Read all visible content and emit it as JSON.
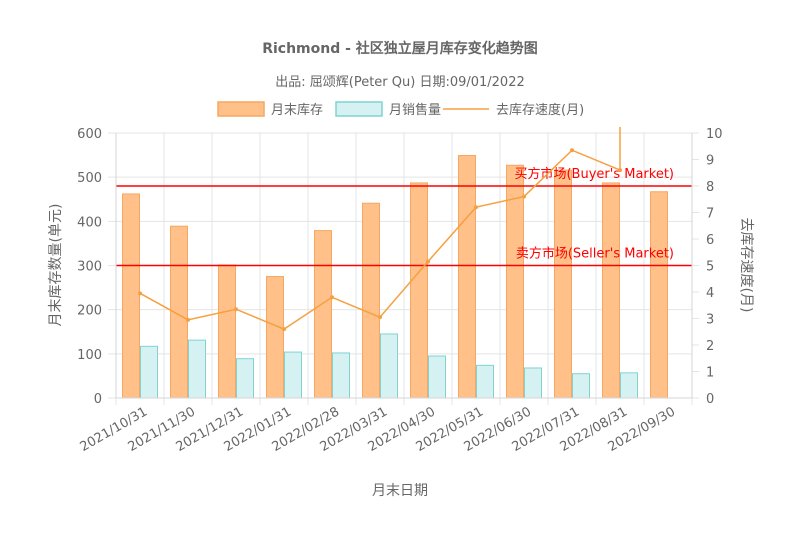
{
  "chart_data": {
    "type": "bar",
    "title": "Richmond - 社区独立屋月库存变化趋势图",
    "subtitle": "出品: 屈颂辉(Peter Qu) 日期:09/01/2022",
    "categories": [
      "2021/10/31",
      "2021/11/30",
      "2021/12/31",
      "2022/01/31",
      "2022/02/28",
      "2022/03/31",
      "2022/04/30",
      "2022/05/31",
      "2022/06/30",
      "2022/07/31",
      "2022/08/31",
      "2022/09/30"
    ],
    "series": [
      {
        "name": "月末库存",
        "type": "bar",
        "axis": "left",
        "color": "#ffc08a",
        "border": "#f5a860",
        "values": [
          462,
          389,
          301,
          275,
          379,
          441,
          487,
          549,
          527,
          516,
          487,
          467
        ]
      },
      {
        "name": "月销售量",
        "type": "bar",
        "axis": "left",
        "color": "#d6f1f1",
        "border": "#7fd3d3",
        "values": [
          117,
          131,
          89,
          104,
          102,
          145,
          95,
          74,
          68,
          55,
          57,
          0
        ]
      },
      {
        "name": "去库存速度(月)",
        "type": "line",
        "axis": "right",
        "color": "#f5a040",
        "values": [
          3.95,
          2.95,
          3.35,
          2.6,
          3.8,
          3.05,
          5.15,
          7.2,
          7.6,
          9.35,
          8.6,
          null
        ]
      }
    ],
    "xlabel": "月末日期",
    "ylabel": "月末库存数量(单元)",
    "y2label": "去库存速度(月)",
    "ylim": [
      0,
      600
    ],
    "yticks": [
      0,
      100,
      200,
      300,
      400,
      500,
      600
    ],
    "y2lim": [
      0,
      10
    ],
    "y2ticks": [
      0,
      1,
      2,
      3,
      4,
      5,
      6,
      7,
      8,
      9,
      10
    ],
    "grid": true,
    "legend": "top",
    "annotations": [
      {
        "label": "买方市场(Buyer's Market)",
        "y2": 8,
        "color": "#ff0000"
      },
      {
        "label": "卖方市场(Seller's Market)",
        "y2": 5,
        "color": "#ff0000"
      }
    ]
  }
}
